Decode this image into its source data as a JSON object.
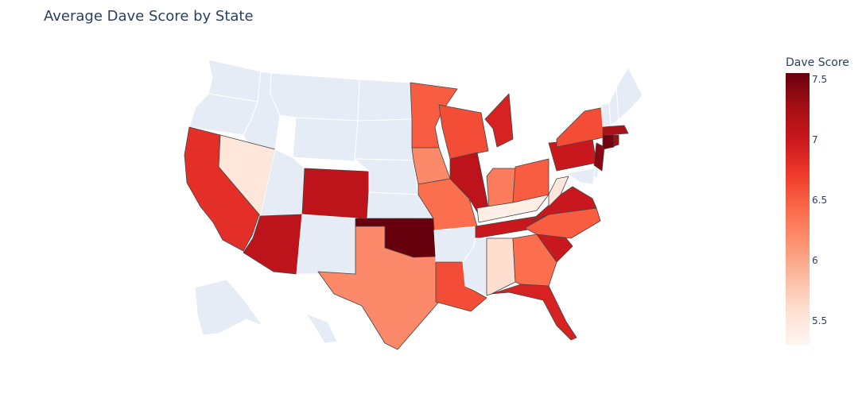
{
  "title": "Average Dave Score by State",
  "colorbar": {
    "title": "Dave Score",
    "range": [
      5.3,
      7.55
    ],
    "ticks": [
      {
        "value": 5.5,
        "label": "5.5"
      },
      {
        "value": 6,
        "label": "6"
      },
      {
        "value": 6.5,
        "label": "6.5"
      },
      {
        "value": 7,
        "label": "7"
      },
      {
        "value": 7.5,
        "label": "7.5"
      }
    ],
    "colorscale": "Reds",
    "no_data_color": "#e5ecf6"
  },
  "chart_data": {
    "type": "choropleth",
    "title": "Average Dave Score by State",
    "legend_title": "Dave Score",
    "scope": "usa",
    "values": {
      "CA": 6.8,
      "NV": 5.5,
      "AZ": 7.1,
      "CO": 7.1,
      "TX": 6.2,
      "OK": 7.55,
      "MN": 6.5,
      "IA": 6.2,
      "MO": 6.4,
      "WI": 6.6,
      "IL": 7.1,
      "MI": 6.9,
      "IN": 6.3,
      "OH": 6.5,
      "KY": 5.4,
      "WV": 5.5,
      "TN": 7.0,
      "AL": 5.6,
      "GA": 6.4,
      "FL": 6.9,
      "SC": 7.0,
      "NC": 6.5,
      "VA": 7.0,
      "LA": 6.6,
      "PA": 7.0,
      "NY": 6.6,
      "NJ": 7.4,
      "CT": 7.5,
      "MA": 7.2,
      "RI": 7.3
    }
  }
}
